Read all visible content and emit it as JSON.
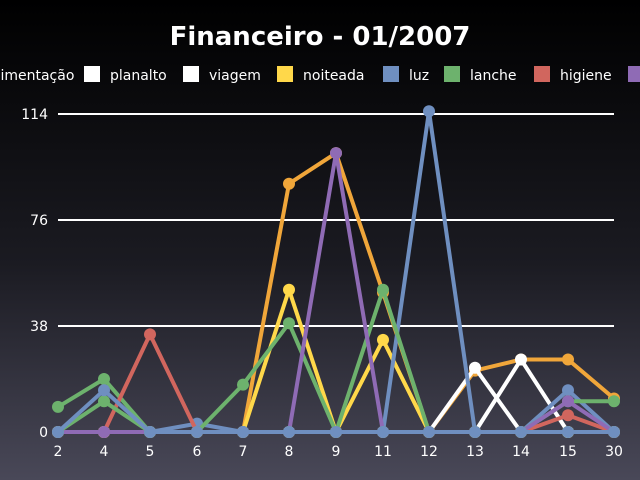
{
  "chart_data": {
    "type": "line",
    "title": "Financeiro - 01/2007",
    "xlabel": "",
    "ylabel": "",
    "categories": [
      "2",
      "4",
      "5",
      "6",
      "7",
      "8",
      "9",
      "11",
      "12",
      "13",
      "14",
      "15",
      "30"
    ],
    "y_ticks": [
      "0",
      "38",
      "76",
      "114"
    ],
    "ylim": [
      0,
      114
    ],
    "grid": true,
    "legend_placement": "top",
    "series": [
      {
        "name": "alimentação",
        "color": "#f0a63a",
        "values": [
          0,
          0,
          0,
          0,
          0,
          89,
          100,
          50,
          0,
          22,
          26,
          26,
          12
        ]
      },
      {
        "name": "planalto",
        "color": "#ffffff",
        "values": [
          0,
          0,
          0,
          0,
          0,
          0,
          0,
          0,
          0,
          23,
          0,
          0,
          0
        ]
      },
      {
        "name": "viagem",
        "color": "#ffffff",
        "values": [
          0,
          0,
          0,
          0,
          0,
          0,
          0,
          0,
          0,
          0,
          26,
          0,
          0
        ]
      },
      {
        "name": "noiteada",
        "color": "#ffd84a",
        "values": [
          0,
          0,
          0,
          0,
          0,
          51,
          0,
          33,
          0,
          0,
          0,
          0,
          0
        ]
      },
      {
        "name": "luz",
        "color": "#6f8fc0",
        "values": [
          0,
          0,
          0,
          3,
          0,
          0,
          0,
          0,
          115,
          0,
          0,
          15,
          0
        ]
      },
      {
        "name": "lanche",
        "color": "#6db26d",
        "values": [
          9,
          19,
          0,
          0,
          17,
          39,
          0,
          51,
          0,
          0,
          0,
          11,
          11
        ]
      },
      {
        "name": "higiene",
        "color": "#d1665e",
        "values": [
          0,
          0,
          35,
          0,
          0,
          0,
          0,
          0,
          0,
          0,
          0,
          6,
          0
        ]
      },
      {
        "name": "",
        "color": "#8f6bb5",
        "values": [
          0,
          0,
          0,
          0,
          0,
          0,
          100,
          0,
          0,
          0,
          0,
          11,
          0
        ]
      },
      {
        "name": "",
        "color": "#6db26d",
        "values": [
          0,
          11,
          0,
          0,
          0,
          0,
          0,
          0,
          0,
          0,
          0,
          0,
          0
        ]
      },
      {
        "name": "",
        "color": "#6f8fc0",
        "values": [
          0,
          15,
          0,
          0,
          0,
          0,
          0,
          0,
          0,
          0,
          0,
          0,
          0
        ]
      }
    ]
  }
}
